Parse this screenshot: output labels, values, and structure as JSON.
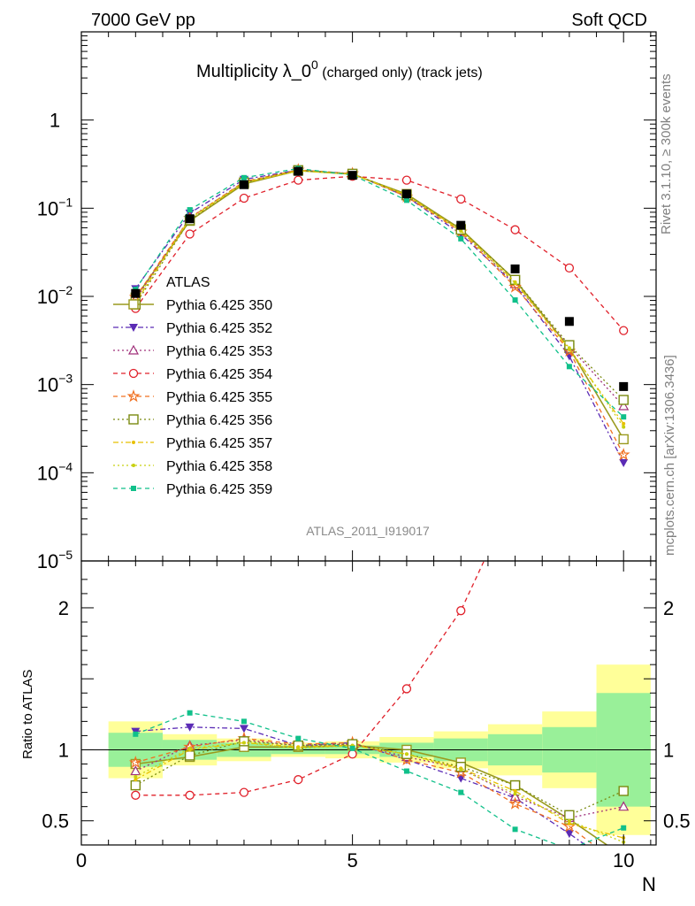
{
  "header": {
    "left": "7000 GeV pp",
    "right": "Soft QCD"
  },
  "side_labels": {
    "rivet": "Rivet 3.1.10, ≥ 300k events",
    "mcplots": "mcplots.cern.ch [arXiv:1306.3436]"
  },
  "chart_data": {
    "type": "line",
    "title": "Multiplicity λ_0",
    "title_superscript": "0",
    "title_suffix": " (charged only) (track jets)",
    "reference_label": "ATLAS_2011_I919017",
    "xlabel": "N",
    "ylabel_ratio": "Ratio to ATLAS",
    "xlim": [
      0,
      10.6
    ],
    "ylim_main": [
      1e-05,
      10
    ],
    "ylim_ratio": [
      0.33,
      2.33
    ],
    "log_y_main": true,
    "x_ticks": [
      "0",
      "5",
      "10"
    ],
    "y_ticks_main": [
      {
        "v": 1e-05,
        "base": "10",
        "exp": "−5"
      },
      {
        "v": 0.0001,
        "base": "10",
        "exp": "−4"
      },
      {
        "v": 0.001,
        "base": "10",
        "exp": "−3"
      },
      {
        "v": 0.01,
        "base": "10",
        "exp": "−2"
      },
      {
        "v": 0.1,
        "base": "10",
        "exp": "−1"
      },
      {
        "v": 1,
        "base": "1",
        "exp": ""
      }
    ],
    "y_ticks_ratio": [
      "0.5",
      "1",
      "2"
    ],
    "x": [
      1,
      2,
      3,
      4,
      5,
      6,
      7,
      8,
      9,
      10
    ],
    "data": {
      "name": "ATLAS",
      "values": [
        0.0108,
        0.076,
        0.185,
        0.262,
        0.236,
        0.145,
        0.064,
        0.0205,
        0.0052,
        0.00095
      ],
      "band_inner": [
        0.12,
        0.07,
        0.05,
        0.03,
        0.03,
        0.05,
        0.08,
        0.11,
        0.16,
        0.4
      ],
      "band_outer": [
        0.2,
        0.11,
        0.08,
        0.05,
        0.06,
        0.09,
        0.13,
        0.18,
        0.27,
        0.6
      ]
    },
    "series": [
      {
        "name": "Pythia 6.425 350",
        "color": "#9a9a1e",
        "dash": "",
        "marker": "square-open",
        "values": [
          0.0097,
          0.072,
          0.189,
          0.267,
          0.243,
          0.145,
          0.058,
          0.0153,
          0.0026,
          0.00024
        ],
        "ratio": [
          0.9,
          0.95,
          1.02,
          1.02,
          1.03,
          1.0,
          0.91,
          0.75,
          0.51,
          0.25
        ]
      },
      {
        "name": "Pythia 6.425 352",
        "color": "#5b2bb5",
        "dash": "6,3,2,3",
        "marker": "triangle-down",
        "values": [
          0.0122,
          0.088,
          0.212,
          0.27,
          0.247,
          0.135,
          0.051,
          0.0135,
          0.0021,
          0.00013
        ],
        "ratio": [
          1.13,
          1.16,
          1.15,
          1.03,
          1.05,
          0.93,
          0.8,
          0.66,
          0.41,
          0.14
        ]
      },
      {
        "name": "Pythia 6.425 353",
        "color": "#a0307a",
        "dash": "2,3",
        "marker": "triangle-open",
        "values": [
          0.0092,
          0.078,
          0.198,
          0.27,
          0.245,
          0.138,
          0.056,
          0.0138,
          0.0027,
          0.00057
        ],
        "ratio": [
          0.85,
          1.03,
          1.07,
          1.03,
          1.04,
          0.95,
          0.87,
          0.67,
          0.52,
          0.6
        ]
      },
      {
        "name": "Pythia 6.425 354",
        "color": "#e0202a",
        "dash": "5,4",
        "marker": "circle-open",
        "values": [
          0.0073,
          0.051,
          0.13,
          0.208,
          0.23,
          0.208,
          0.127,
          0.057,
          0.021,
          0.0041
        ],
        "ratio": [
          0.68,
          0.68,
          0.7,
          0.79,
          0.97,
          1.43,
          1.98,
          2.8,
          4.0,
          4.3
        ]
      },
      {
        "name": "Pythia 6.425 355",
        "color": "#f07020",
        "dash": "5,4",
        "marker": "star",
        "values": [
          0.0098,
          0.077,
          0.2,
          0.272,
          0.247,
          0.135,
          0.054,
          0.0128,
          0.0024,
          0.00016
        ],
        "ratio": [
          0.91,
          1.02,
          1.08,
          1.04,
          1.05,
          0.93,
          0.84,
          0.62,
          0.46,
          0.17
        ]
      },
      {
        "name": "Pythia 6.425 356",
        "color": "#7a8a10",
        "dash": "2,3",
        "marker": "square-open",
        "values": [
          0.0081,
          0.073,
          0.196,
          0.27,
          0.246,
          0.14,
          0.057,
          0.0154,
          0.0028,
          0.00067
        ],
        "ratio": [
          0.75,
          0.96,
          1.06,
          1.03,
          1.04,
          0.97,
          0.88,
          0.75,
          0.54,
          0.71
        ]
      },
      {
        "name": "Pythia 6.425 357",
        "color": "#e8c000",
        "dash": "6,3,2,3",
        "marker": "dot",
        "values": [
          0.0085,
          0.076,
          0.194,
          0.266,
          0.244,
          0.141,
          0.056,
          0.0145,
          0.0025,
          0.00036
        ],
        "ratio": [
          0.79,
          1.0,
          1.05,
          1.02,
          1.03,
          0.97,
          0.87,
          0.71,
          0.48,
          0.38
        ]
      },
      {
        "name": "Pythia 6.425 358",
        "color": "#c8d010",
        "dash": "2,3",
        "marker": "dot",
        "values": [
          0.0088,
          0.077,
          0.195,
          0.265,
          0.244,
          0.14,
          0.055,
          0.0142,
          0.0026,
          0.00033
        ],
        "ratio": [
          0.81,
          1.01,
          1.05,
          1.01,
          1.03,
          0.97,
          0.86,
          0.69,
          0.5,
          0.35
        ]
      },
      {
        "name": "Pythia 6.425 359",
        "color": "#10c08a",
        "dash": "5,4",
        "marker": "square-filled",
        "values": [
          0.012,
          0.096,
          0.222,
          0.282,
          0.238,
          0.123,
          0.045,
          0.0091,
          0.0016,
          0.00043
        ],
        "ratio": [
          1.11,
          1.26,
          1.2,
          1.08,
          1.01,
          0.85,
          0.7,
          0.44,
          0.3,
          0.45
        ]
      }
    ]
  }
}
